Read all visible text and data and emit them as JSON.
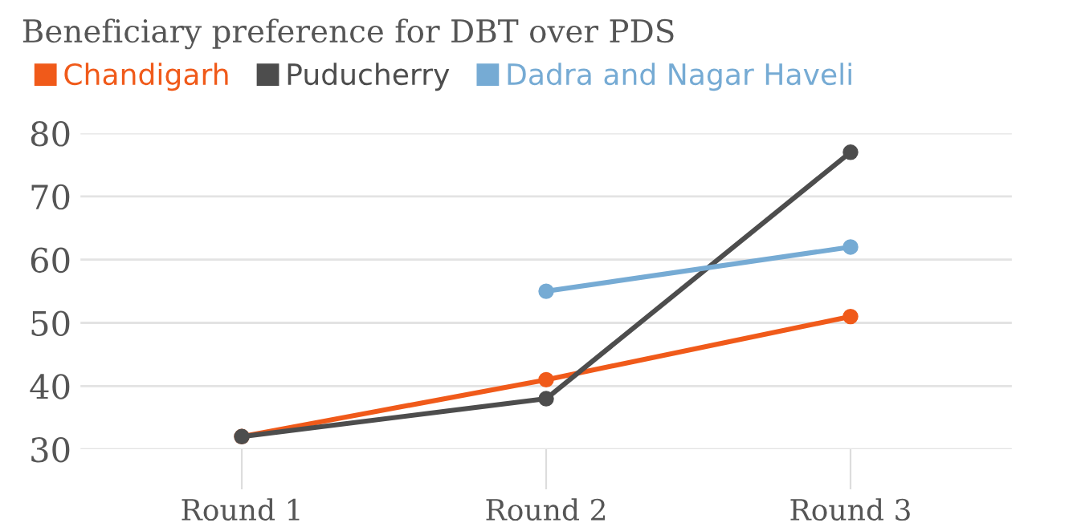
{
  "chart_data": {
    "type": "line",
    "title": "Beneficiary preference for DBT over PDS",
    "categories": [
      "Round 1",
      "Round 2",
      "Round 3"
    ],
    "series": [
      {
        "name": "Chandigarh",
        "color": "#f05a1a",
        "values": [
          32,
          41,
          51
        ]
      },
      {
        "name": "Puducherry",
        "color": "#4d4d4d",
        "values": [
          32,
          38,
          77
        ]
      },
      {
        "name": "Dadra and Nagar Haveli",
        "color": "#76abd4",
        "values": [
          null,
          55,
          62
        ]
      }
    ],
    "ylim": [
      30,
      80
    ],
    "yticks": [
      30,
      40,
      50,
      60,
      70,
      80
    ],
    "grid": "y",
    "legend": "top left",
    "marker": "circle",
    "line_style": "solid"
  }
}
